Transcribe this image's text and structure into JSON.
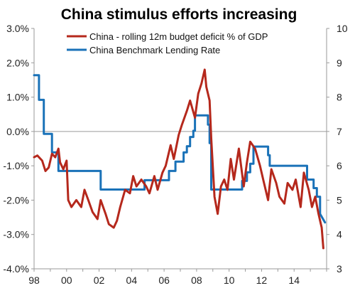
{
  "chart_data": {
    "type": "line",
    "title": "China stimulus efforts increasing",
    "xlabel": "",
    "ylabel": "",
    "x_ticks": [
      "98",
      "00",
      "02",
      "04",
      "06",
      "08",
      "10",
      "12",
      "14"
    ],
    "x_range": [
      1998.0,
      2016.0
    ],
    "y_left": {
      "range": [
        -4.0,
        3.0
      ],
      "ticks": [
        -4,
        -3,
        -2,
        -1,
        0,
        1,
        2,
        3
      ],
      "tick_labels": [
        "-4.0%",
        "-3.0%",
        "-2.0%",
        "-1.0%",
        "0.0%",
        "1.0%",
        "2.0%",
        "3.0%"
      ]
    },
    "y_right": {
      "range": [
        3,
        10
      ],
      "ticks": [
        3,
        4,
        5,
        6,
        7,
        8,
        9,
        10
      ],
      "tick_labels": [
        "3",
        "4",
        "5",
        "6",
        "7",
        "8",
        "9",
        "10"
      ]
    },
    "zero_line": true,
    "grid": false,
    "legend_position": "top",
    "series": [
      {
        "name": "China - rolling 12m budget deficit % of GDP",
        "axis": "left",
        "color": "#b5281c",
        "x": [
          1998.0,
          1998.2,
          1998.5,
          1998.7,
          1998.9,
          1999.1,
          1999.3,
          1999.5,
          1999.6,
          1999.8,
          2000.0,
          2000.1,
          2000.3,
          2000.6,
          2000.9,
          2001.1,
          2001.3,
          2001.6,
          2001.9,
          2002.1,
          2002.4,
          2002.6,
          2002.9,
          2003.1,
          2003.3,
          2003.6,
          2003.9,
          2004.1,
          2004.3,
          2004.6,
          2004.9,
          2005.1,
          2005.4,
          2005.6,
          2005.9,
          2006.1,
          2006.4,
          2006.6,
          2006.9,
          2007.1,
          2007.4,
          2007.6,
          2007.9,
          2008.1,
          2008.3,
          2008.5,
          2008.6,
          2008.8,
          2008.9,
          2009.1,
          2009.3,
          2009.5,
          2009.7,
          2009.9,
          2010.1,
          2010.3,
          2010.6,
          2010.9,
          2011.1,
          2011.3,
          2011.6,
          2011.9,
          2012.1,
          2012.4,
          2012.6,
          2012.9,
          2013.1,
          2013.4,
          2013.6,
          2013.9,
          2014.1,
          2014.4,
          2014.6,
          2014.9,
          2015.1,
          2015.3,
          2015.5,
          2015.7,
          2015.8
        ],
        "values": [
          -0.75,
          -0.7,
          -0.85,
          -1.15,
          -1.05,
          -0.65,
          -0.75,
          -0.5,
          -0.9,
          -1.1,
          -0.85,
          -2.0,
          -2.2,
          -2.0,
          -2.2,
          -1.7,
          -1.95,
          -2.35,
          -2.55,
          -2.0,
          -2.4,
          -2.7,
          -2.8,
          -2.6,
          -2.2,
          -1.7,
          -1.8,
          -1.3,
          -1.6,
          -1.4,
          -1.6,
          -1.8,
          -1.3,
          -1.7,
          -1.2,
          -1.0,
          -0.4,
          -0.8,
          -0.1,
          0.2,
          0.6,
          0.9,
          0.4,
          1.1,
          1.4,
          1.8,
          1.3,
          0.9,
          -0.2,
          -1.9,
          -2.4,
          -1.6,
          -1.4,
          -1.7,
          -0.8,
          -1.4,
          -0.5,
          -1.6,
          -0.9,
          -0.3,
          -0.5,
          -1.0,
          -1.4,
          -2.0,
          -1.1,
          -1.5,
          -1.9,
          -2.1,
          -1.5,
          -1.7,
          -1.4,
          -2.2,
          -1.2,
          -1.7,
          -2.2,
          -1.9,
          -2.4,
          -2.8,
          -3.4
        ]
      },
      {
        "name": "China Benchmark Lending Rate",
        "axis": "right",
        "color": "#1a72b8",
        "x": [
          1998.0,
          1998.3,
          1998.3,
          1998.6,
          1998.6,
          1999.1,
          1999.1,
          1999.5,
          1999.5,
          2002.1,
          2002.1,
          2004.8,
          2004.8,
          2006.3,
          2006.3,
          2006.7,
          2006.7,
          2007.2,
          2007.2,
          2007.4,
          2007.4,
          2007.6,
          2007.6,
          2007.8,
          2007.8,
          2007.9,
          2007.9,
          2008.7,
          2008.7,
          2008.8,
          2008.8,
          2008.9,
          2008.9,
          2010.8,
          2010.8,
          2011.1,
          2011.1,
          2011.3,
          2011.3,
          2011.5,
          2011.5,
          2012.4,
          2012.4,
          2012.5,
          2012.5,
          2014.8,
          2014.8,
          2015.2,
          2015.2,
          2015.4,
          2015.4,
          2015.6,
          2015.6,
          2015.9
        ],
        "values": [
          8.64,
          8.64,
          7.92,
          7.92,
          6.93,
          6.93,
          6.39,
          6.39,
          5.85,
          5.85,
          5.31,
          5.31,
          5.58,
          5.58,
          5.85,
          5.85,
          6.12,
          6.12,
          6.39,
          6.39,
          6.57,
          6.57,
          6.84,
          6.84,
          7.02,
          7.02,
          7.47,
          7.47,
          7.2,
          7.2,
          6.66,
          6.66,
          5.31,
          5.31,
          5.56,
          5.56,
          5.81,
          5.81,
          6.06,
          6.06,
          6.56,
          6.56,
          6.31,
          6.31,
          6.0,
          6.0,
          5.6,
          5.6,
          5.35,
          5.35,
          5.1,
          5.1,
          4.6,
          4.35
        ]
      }
    ]
  }
}
